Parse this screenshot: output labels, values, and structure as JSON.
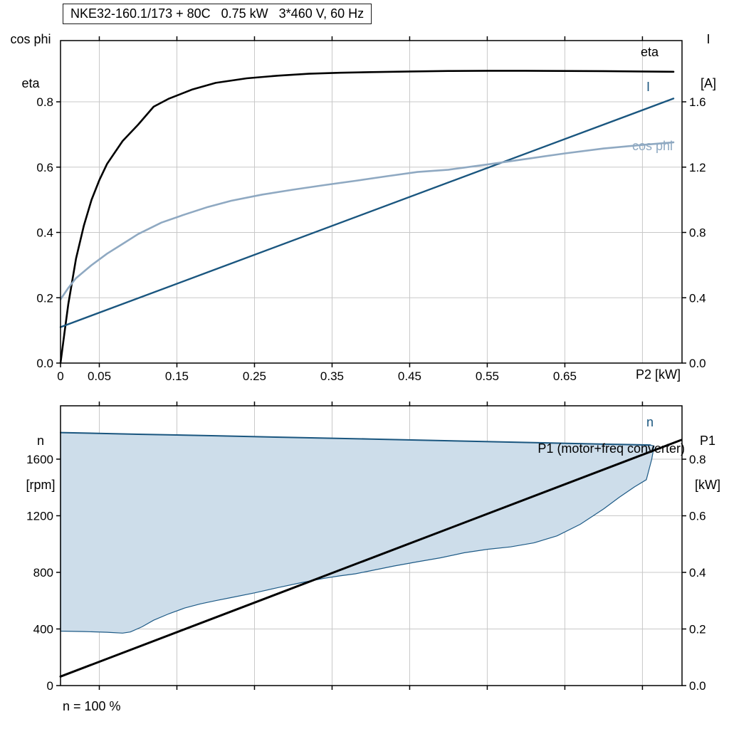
{
  "title_box": "NKE32-160.1/173 + 80C   0.75 kW   3*460 V, 60 Hz",
  "labels": {
    "top_left_line1": "cos phi",
    "top_left_line2": "eta",
    "top_right_line1": "I",
    "top_right_line2": "[A]",
    "x_label_top_chart": "P2 [kW]",
    "bottom_left_line1": "n",
    "bottom_left_line2": "[rpm]",
    "bottom_right_line1": "P1",
    "bottom_right_line2": "[kW]",
    "note": "n = 100 %",
    "curve_eta": "eta",
    "curve_current": "I",
    "curve_cosphi": "cos phi",
    "curve_n": "n",
    "curve_p1": "P1 (motor+freq converter)"
  },
  "colors": {
    "grid": "#c8c8c8",
    "frame": "#000000",
    "eta": "#000000",
    "current": "#1a567f",
    "cosphi": "#8fa9c2",
    "n": "#1a567f",
    "p1": "#000000",
    "envelope_fill": "#cdddea",
    "envelope_stroke": "#1d5a86"
  },
  "chart_data": [
    {
      "type": "line",
      "title": "NKE32-160.1/173 + 80C 0.75 kW 3*460 V, 60 Hz",
      "x": {
        "label": "P2 [kW]",
        "range": [
          0,
          0.801
        ],
        "ticks": [
          {
            "v": 0,
            "t": "0"
          },
          {
            "v": 0.05,
            "t": "0.05"
          },
          {
            "v": 0.15,
            "t": "0.15"
          },
          {
            "v": 0.25,
            "t": "0.25"
          },
          {
            "v": 0.35,
            "t": "0.35"
          },
          {
            "v": 0.45,
            "t": "0.45"
          },
          {
            "v": 0.55,
            "t": "0.55"
          },
          {
            "v": 0.65,
            "t": "0.65"
          }
        ],
        "grid": [
          0.05,
          0.15,
          0.25,
          0.35,
          0.45,
          0.55,
          0.65,
          0.75
        ]
      },
      "y_left": {
        "label": "cos phi, eta",
        "range": [
          0,
          0.9875
        ],
        "ticks": [
          {
            "v": 0,
            "t": "0.0"
          },
          {
            "v": 0.2,
            "t": "0.2"
          },
          {
            "v": 0.4,
            "t": "0.4"
          },
          {
            "v": 0.6,
            "t": "0.6"
          },
          {
            "v": 0.8,
            "t": "0.8"
          }
        ],
        "grid": [
          0.2,
          0.4,
          0.6,
          0.8
        ]
      },
      "y_right": {
        "label": "I [A]",
        "range": [
          0,
          1.975
        ],
        "ticks": [
          {
            "v": 0,
            "t": "0.0"
          },
          {
            "v": 0.4,
            "t": "0.4"
          },
          {
            "v": 0.8,
            "t": "0.8"
          },
          {
            "v": 1.2,
            "t": "1.2"
          },
          {
            "v": 1.6,
            "t": "1.6"
          }
        ]
      },
      "series": [
        {
          "name": "eta",
          "axis": "left",
          "color": "#000000",
          "width": 2.6,
          "x": [
            0,
            0.005,
            0.01,
            0.02,
            0.03,
            0.04,
            0.05,
            0.06,
            0.08,
            0.1,
            0.12,
            0.14,
            0.17,
            0.2,
            0.24,
            0.28,
            0.32,
            0.36,
            0.4,
            0.45,
            0.5,
            0.55,
            0.6,
            0.65,
            0.7,
            0.75,
            0.79
          ],
          "y": [
            0,
            0.09,
            0.18,
            0.32,
            0.42,
            0.5,
            0.56,
            0.61,
            0.68,
            0.73,
            0.785,
            0.81,
            0.838,
            0.858,
            0.872,
            0.88,
            0.886,
            0.889,
            0.891,
            0.893,
            0.8945,
            0.895,
            0.895,
            0.8945,
            0.894,
            0.893,
            0.892
          ]
        },
        {
          "name": "I",
          "axis": "right",
          "color": "#1a567f",
          "width": 2.4,
          "x": [
            0,
            0.79
          ],
          "y": [
            0.22,
            1.62
          ]
        },
        {
          "name": "cos phi",
          "axis": "left",
          "color": "#8fa9c2",
          "width": 2.6,
          "x": [
            0,
            0.01,
            0.02,
            0.04,
            0.06,
            0.08,
            0.1,
            0.13,
            0.16,
            0.19,
            0.22,
            0.26,
            0.3,
            0.34,
            0.38,
            0.42,
            0.46,
            0.5,
            0.55,
            0.6,
            0.65,
            0.7,
            0.75,
            0.79
          ],
          "y": [
            0.195,
            0.23,
            0.26,
            0.3,
            0.335,
            0.365,
            0.395,
            0.43,
            0.455,
            0.478,
            0.497,
            0.516,
            0.531,
            0.545,
            0.558,
            0.572,
            0.585,
            0.592,
            0.608,
            0.625,
            0.642,
            0.657,
            0.668,
            0.676
          ]
        }
      ]
    },
    {
      "type": "line+area",
      "x": {
        "label": "",
        "range": [
          0,
          0.801
        ],
        "ticks": [],
        "grid": [
          0.05,
          0.15,
          0.25,
          0.35,
          0.45,
          0.55,
          0.65,
          0.75
        ]
      },
      "y_left": {
        "label": "n [rpm]",
        "range": [
          0,
          1977
        ],
        "ticks": [
          {
            "v": 0,
            "t": "0"
          },
          {
            "v": 400,
            "t": "400"
          },
          {
            "v": 800,
            "t": "800"
          },
          {
            "v": 1200,
            "t": "1200"
          },
          {
            "v": 1600,
            "t": "1600"
          }
        ],
        "grid": [
          400,
          800,
          1200,
          1600
        ]
      },
      "y_right": {
        "label": "P1 [kW]",
        "range": [
          0,
          0.9887
        ],
        "ticks": [
          {
            "v": 0,
            "t": "0.0"
          },
          {
            "v": 0.2,
            "t": "0.2"
          },
          {
            "v": 0.4,
            "t": "0.4"
          },
          {
            "v": 0.6,
            "t": "0.6"
          },
          {
            "v": 0.8,
            "t": "0.8"
          }
        ]
      },
      "envelope": {
        "name": "speed-control-duty-range",
        "fill": "#cdddea",
        "stroke": "#1d5a86",
        "x": [
          0,
          0.03,
          0.06,
          0.08,
          0.09,
          0.105,
          0.12,
          0.14,
          0.16,
          0.18,
          0.2,
          0.22,
          0.25,
          0.28,
          0.31,
          0.34,
          0.36,
          0.38,
          0.4,
          0.43,
          0.46,
          0.49,
          0.52,
          0.55,
          0.58,
          0.61,
          0.64,
          0.67,
          0.7,
          0.72,
          0.74,
          0.755,
          0.762,
          0.765,
          0.76,
          0.7,
          0.6,
          0.5,
          0.4,
          0.3,
          0.2,
          0.1,
          0
        ],
        "y": [
          385,
          382,
          377,
          371,
          379,
          415,
          462,
          508,
          548,
          577,
          600,
          622,
          655,
          692,
          727,
          758,
          775,
          790,
          812,
          845,
          875,
          903,
          938,
          963,
          980,
          1008,
          1058,
          1140,
          1248,
          1330,
          1405,
          1455,
          1600,
          1693,
          1700,
          1706,
          1718,
          1730,
          1742,
          1753,
          1765,
          1776,
          1788
        ]
      },
      "series": [
        {
          "name": "n",
          "axis": "left",
          "color": "#1a567f",
          "width": 2,
          "x": [
            0,
            0.1,
            0.2,
            0.3,
            0.4,
            0.5,
            0.6,
            0.7,
            0.76
          ],
          "y": [
            1788,
            1776,
            1765,
            1753,
            1742,
            1730,
            1718,
            1706,
            1700
          ]
        },
        {
          "name": "P1 (motor+freq converter)",
          "axis": "right",
          "color": "#000000",
          "width": 3,
          "x": [
            0,
            0.8
          ],
          "y": [
            0.032,
            0.868
          ]
        }
      ]
    }
  ]
}
